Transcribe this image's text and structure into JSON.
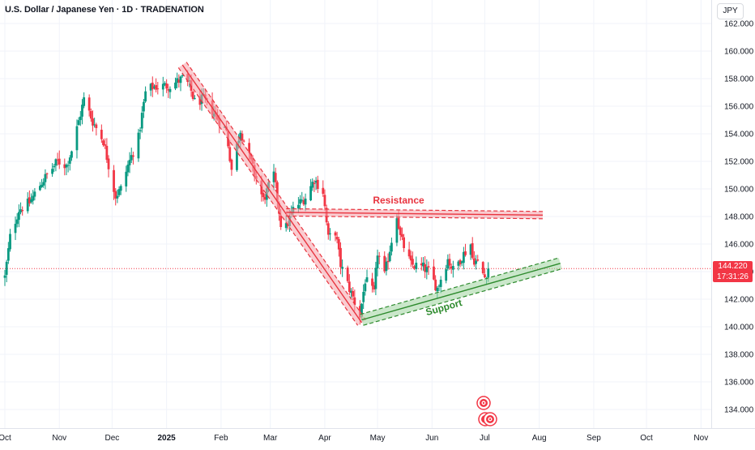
{
  "header": {
    "symbol_title": "U.S. Dollar / Japanese Yen · 1D · TRADENATION",
    "currency": "JPY"
  },
  "price_tag": {
    "price": "144.220",
    "countdown": "17:31:26"
  },
  "colors": {
    "up": "#089981",
    "down": "#f23645",
    "resistance": "#e8343f",
    "support": "#2e8b2e",
    "grid": "#f0f3fa",
    "text": "#131722"
  },
  "annotations": {
    "resistance_label": "Resistance",
    "support_label": "Support",
    "icons": [
      "target-icon",
      "target-icon"
    ]
  },
  "chart_data": {
    "type": "candlestick",
    "title": "U.S. Dollar / Japanese Yen · 1D · TRADENATION",
    "xlabel": "",
    "ylabel": "",
    "ylim": [
      132.3,
      163.1
    ],
    "y_ticks": [
      "162.000",
      "160.000",
      "158.000",
      "156.000",
      "154.000",
      "152.000",
      "150.000",
      "148.000",
      "146.000",
      "144.000",
      "142.000",
      "140.000",
      "138.000",
      "136.000",
      "134.000"
    ],
    "x_ticks": [
      {
        "label": "Oct",
        "date": "2024-10-01"
      },
      {
        "label": "Nov",
        "date": "2024-11-01"
      },
      {
        "label": "Dec",
        "date": "2024-12-01"
      },
      {
        "label": "2025",
        "date": "2025-01-01"
      },
      {
        "label": "Feb",
        "date": "2025-02-01"
      },
      {
        "label": "Mar",
        "date": "2025-03-01"
      },
      {
        "label": "Apr",
        "date": "2025-04-01"
      },
      {
        "label": "May",
        "date": "2025-05-01"
      },
      {
        "label": "Jun",
        "date": "2025-06-01"
      },
      {
        "label": "Jul",
        "date": "2025-07-01"
      },
      {
        "label": "Aug",
        "date": "2025-08-01"
      },
      {
        "label": "Sep",
        "date": "2025-09-01"
      },
      {
        "label": "Oct",
        "date": "2025-10-01"
      },
      {
        "label": "Nov",
        "date": "2025-11-01"
      }
    ],
    "last_price": 144.22,
    "anchors": [
      [
        "2024-10-01",
        143.6
      ],
      [
        "2024-10-04",
        146.5
      ],
      [
        "2024-10-09",
        148.5
      ],
      [
        "2024-10-15",
        149.0
      ],
      [
        "2024-10-22",
        150.5
      ],
      [
        "2024-10-31",
        152.0
      ],
      [
        "2024-11-05",
        151.7
      ],
      [
        "2024-11-08",
        152.8
      ],
      [
        "2024-11-15",
        156.5
      ],
      [
        "2024-11-20",
        154.9
      ],
      [
        "2024-11-26",
        153.5
      ],
      [
        "2024-12-02",
        150.0
      ],
      [
        "2024-12-03",
        149.5
      ],
      [
        "2024-12-06",
        150.0
      ],
      [
        "2024-12-10",
        151.7
      ],
      [
        "2024-12-16",
        153.7
      ],
      [
        "2024-12-20",
        157.0
      ],
      [
        "2024-12-24",
        157.4
      ],
      [
        "2025-01-03",
        157.5
      ],
      [
        "2025-01-10",
        158.0
      ],
      [
        "2025-01-14",
        157.5
      ],
      [
        "2025-01-17",
        156.3
      ],
      [
        "2025-01-22",
        156.5
      ],
      [
        "2025-01-28",
        155.5
      ],
      [
        "2025-02-04",
        154.2
      ],
      [
        "2025-02-07",
        151.4
      ],
      [
        "2025-02-12",
        154.3
      ],
      [
        "2025-02-19",
        151.5
      ],
      [
        "2025-02-25",
        149.2
      ],
      [
        "2025-03-03",
        151.0
      ],
      [
        "2025-03-07",
        147.5
      ],
      [
        "2025-03-10",
        147.2
      ],
      [
        "2025-03-14",
        148.5
      ],
      [
        "2025-03-21",
        149.4
      ],
      [
        "2025-03-26",
        150.7
      ],
      [
        "2025-03-31",
        149.8
      ],
      [
        "2025-04-03",
        146.4
      ],
      [
        "2025-04-07",
        146.9
      ],
      [
        "2025-04-10",
        144.5
      ],
      [
        "2025-04-14",
        143.1
      ],
      [
        "2025-04-21",
        140.8
      ],
      [
        "2025-04-24",
        143.4
      ],
      [
        "2025-04-29",
        142.4
      ],
      [
        "2025-05-01",
        145.4
      ],
      [
        "2025-05-05",
        143.7
      ],
      [
        "2025-05-12",
        148.2
      ],
      [
        "2025-05-14",
        146.5
      ],
      [
        "2025-05-20",
        144.5
      ],
      [
        "2025-05-27",
        144.3
      ],
      [
        "2025-05-30",
        144.0
      ],
      [
        "2025-06-04",
        142.8
      ],
      [
        "2025-06-10",
        144.9
      ],
      [
        "2025-06-13",
        144.1
      ],
      [
        "2025-06-18",
        145.1
      ],
      [
        "2025-06-23",
        146.0
      ],
      [
        "2025-06-24",
        145.0
      ],
      [
        "2025-06-27",
        144.6
      ],
      [
        "2025-07-01",
        143.6
      ],
      [
        "2025-07-03",
        144.22
      ]
    ],
    "annotations": {
      "downtrend_channel": {
        "from": [
          "2025-01-10",
          159.0
        ],
        "to": [
          "2025-04-22",
          140.3
        ]
      },
      "resistance": {
        "from": [
          "2025-03-10",
          148.3
        ],
        "to": [
          "2025-08-03",
          148.1
        ],
        "label": "Resistance"
      },
      "support": {
        "from": [
          "2025-04-22",
          140.5
        ],
        "to": [
          "2025-08-13",
          144.6
        ],
        "label": "Support"
      }
    }
  }
}
